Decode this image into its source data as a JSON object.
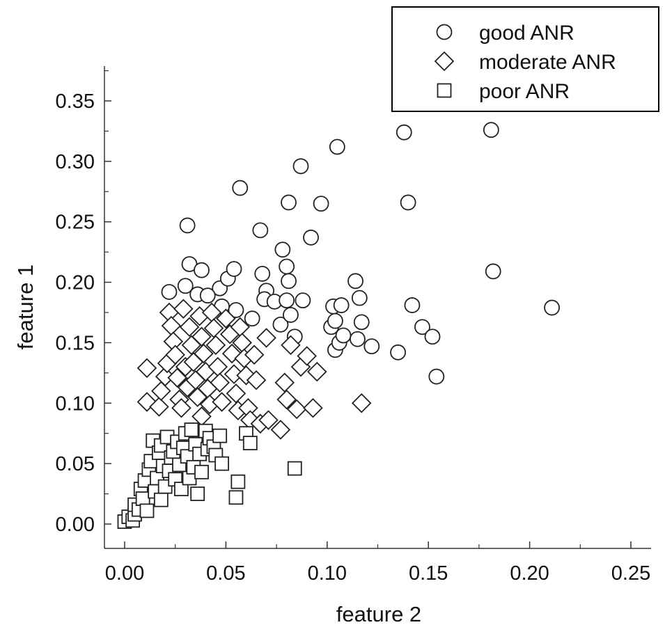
{
  "chart_data": {
    "type": "scatter",
    "xlabel": "feature 2",
    "ylabel": "feature 1",
    "xlim": [
      -0.01,
      0.26
    ],
    "ylim": [
      -0.02,
      0.38
    ],
    "xticks": [
      "0.00",
      "0.05",
      "0.10",
      "0.15",
      "0.20",
      "0.25"
    ],
    "yticks": [
      "0.00",
      "0.05",
      "0.10",
      "0.15",
      "0.20",
      "0.25",
      "0.30",
      "0.35"
    ],
    "xtick_values": [
      0,
      0.05,
      0.1,
      0.15,
      0.2,
      0.25
    ],
    "ytick_values": [
      0,
      0.05,
      0.1,
      0.15,
      0.2,
      0.25,
      0.3,
      0.35
    ],
    "legend_position": "top-right",
    "series": [
      {
        "name": "good ANR",
        "marker": "circle",
        "points": [
          [
            0.031,
            0.247
          ],
          [
            0.032,
            0.215
          ],
          [
            0.038,
            0.21
          ],
          [
            0.03,
            0.197
          ],
          [
            0.022,
            0.192
          ],
          [
            0.036,
            0.19
          ],
          [
            0.047,
            0.195
          ],
          [
            0.041,
            0.189
          ],
          [
            0.048,
            0.18
          ],
          [
            0.051,
            0.203
          ],
          [
            0.054,
            0.211
          ],
          [
            0.055,
            0.177
          ],
          [
            0.057,
            0.278
          ],
          [
            0.063,
            0.17
          ],
          [
            0.067,
            0.243
          ],
          [
            0.068,
            0.207
          ],
          [
            0.07,
            0.193
          ],
          [
            0.069,
            0.186
          ],
          [
            0.074,
            0.184
          ],
          [
            0.077,
            0.165
          ],
          [
            0.078,
            0.227
          ],
          [
            0.08,
            0.213
          ],
          [
            0.081,
            0.201
          ],
          [
            0.08,
            0.185
          ],
          [
            0.082,
            0.173
          ],
          [
            0.081,
            0.266
          ],
          [
            0.084,
            0.155
          ],
          [
            0.087,
            0.296
          ],
          [
            0.088,
            0.185
          ],
          [
            0.092,
            0.237
          ],
          [
            0.097,
            0.265
          ],
          [
            0.102,
            0.163
          ],
          [
            0.103,
            0.18
          ],
          [
            0.104,
            0.168
          ],
          [
            0.104,
            0.144
          ],
          [
            0.106,
            0.15
          ],
          [
            0.107,
            0.181
          ],
          [
            0.108,
            0.156
          ],
          [
            0.105,
            0.312
          ],
          [
            0.114,
            0.201
          ],
          [
            0.116,
            0.187
          ],
          [
            0.117,
            0.167
          ],
          [
            0.115,
            0.153
          ],
          [
            0.122,
            0.147
          ],
          [
            0.135,
            0.142
          ],
          [
            0.138,
            0.324
          ],
          [
            0.14,
            0.266
          ],
          [
            0.142,
            0.181
          ],
          [
            0.147,
            0.163
          ],
          [
            0.152,
            0.155
          ],
          [
            0.154,
            0.122
          ],
          [
            0.181,
            0.326
          ],
          [
            0.182,
            0.209
          ],
          [
            0.211,
            0.179
          ]
        ]
      },
      {
        "name": "moderate ANR",
        "marker": "diamond",
        "points": [
          [
            0.011,
            0.129
          ],
          [
            0.011,
            0.101
          ],
          [
            0.017,
            0.097
          ],
          [
            0.018,
            0.11
          ],
          [
            0.02,
            0.122
          ],
          [
            0.021,
            0.133
          ],
          [
            0.022,
            0.175
          ],
          [
            0.023,
            0.164
          ],
          [
            0.024,
            0.151
          ],
          [
            0.025,
            0.14
          ],
          [
            0.026,
            0.121
          ],
          [
            0.027,
            0.103
          ],
          [
            0.028,
            0.096
          ],
          [
            0.029,
            0.178
          ],
          [
            0.03,
            0.13
          ],
          [
            0.031,
            0.113
          ],
          [
            0.032,
            0.163
          ],
          [
            0.033,
            0.148
          ],
          [
            0.034,
            0.134
          ],
          [
            0.035,
            0.119
          ],
          [
            0.036,
            0.105
          ],
          [
            0.037,
            0.172
          ],
          [
            0.038,
            0.155
          ],
          [
            0.039,
            0.141
          ],
          [
            0.04,
            0.126
          ],
          [
            0.041,
            0.112
          ],
          [
            0.042,
            0.099
          ],
          [
            0.038,
            0.089
          ],
          [
            0.043,
            0.175
          ],
          [
            0.044,
            0.162
          ],
          [
            0.045,
            0.148
          ],
          [
            0.046,
            0.13
          ],
          [
            0.047,
            0.117
          ],
          [
            0.048,
            0.101
          ],
          [
            0.05,
            0.17
          ],
          [
            0.052,
            0.157
          ],
          [
            0.053,
            0.141
          ],
          [
            0.054,
            0.124
          ],
          [
            0.055,
            0.108
          ],
          [
            0.056,
            0.094
          ],
          [
            0.057,
            0.163
          ],
          [
            0.058,
            0.15
          ],
          [
            0.059,
            0.137
          ],
          [
            0.06,
            0.123
          ],
          [
            0.061,
            0.096
          ],
          [
            0.062,
            0.086
          ],
          [
            0.064,
            0.14
          ],
          [
            0.065,
            0.119
          ],
          [
            0.067,
            0.083
          ],
          [
            0.07,
            0.154
          ],
          [
            0.071,
            0.086
          ],
          [
            0.077,
            0.078
          ],
          [
            0.079,
            0.117
          ],
          [
            0.08,
            0.103
          ],
          [
            0.082,
            0.148
          ],
          [
            0.085,
            0.095
          ],
          [
            0.087,
            0.13
          ],
          [
            0.09,
            0.139
          ],
          [
            0.093,
            0.096
          ],
          [
            0.095,
            0.126
          ],
          [
            0.117,
            0.1
          ]
        ]
      },
      {
        "name": "poor ANR",
        "marker": "square",
        "points": [
          [
            0.0,
            0.002
          ],
          [
            0.002,
            0.006
          ],
          [
            0.004,
            0.003
          ],
          [
            0.005,
            0.008
          ],
          [
            0.005,
            0.016
          ],
          [
            0.007,
            0.012
          ],
          [
            0.008,
            0.029
          ],
          [
            0.009,
            0.021
          ],
          [
            0.01,
            0.036
          ],
          [
            0.011,
            0.011
          ],
          [
            0.012,
            0.045
          ],
          [
            0.013,
            0.052
          ],
          [
            0.014,
            0.069
          ],
          [
            0.015,
            0.027
          ],
          [
            0.016,
            0.038
          ],
          [
            0.017,
            0.059
          ],
          [
            0.018,
            0.02
          ],
          [
            0.018,
            0.065
          ],
          [
            0.019,
            0.048
          ],
          [
            0.02,
            0.031
          ],
          [
            0.021,
            0.072
          ],
          [
            0.022,
            0.044
          ],
          [
            0.023,
            0.055
          ],
          [
            0.024,
            0.06
          ],
          [
            0.025,
            0.037
          ],
          [
            0.026,
            0.068
          ],
          [
            0.027,
            0.049
          ],
          [
            0.028,
            0.029
          ],
          [
            0.029,
            0.063
          ],
          [
            0.03,
            0.075
          ],
          [
            0.031,
            0.056
          ],
          [
            0.032,
            0.038
          ],
          [
            0.033,
            0.078
          ],
          [
            0.034,
            0.047
          ],
          [
            0.035,
            0.066
          ],
          [
            0.036,
            0.025
          ],
          [
            0.037,
            0.058
          ],
          [
            0.038,
            0.043
          ],
          [
            0.04,
            0.077
          ],
          [
            0.041,
            0.062
          ],
          [
            0.042,
            0.071
          ],
          [
            0.044,
            0.064
          ],
          [
            0.045,
            0.057
          ],
          [
            0.047,
            0.073
          ],
          [
            0.048,
            0.05
          ],
          [
            0.055,
            0.022
          ],
          [
            0.056,
            0.035
          ],
          [
            0.06,
            0.075
          ],
          [
            0.062,
            0.067
          ],
          [
            0.084,
            0.046
          ]
        ]
      }
    ]
  }
}
